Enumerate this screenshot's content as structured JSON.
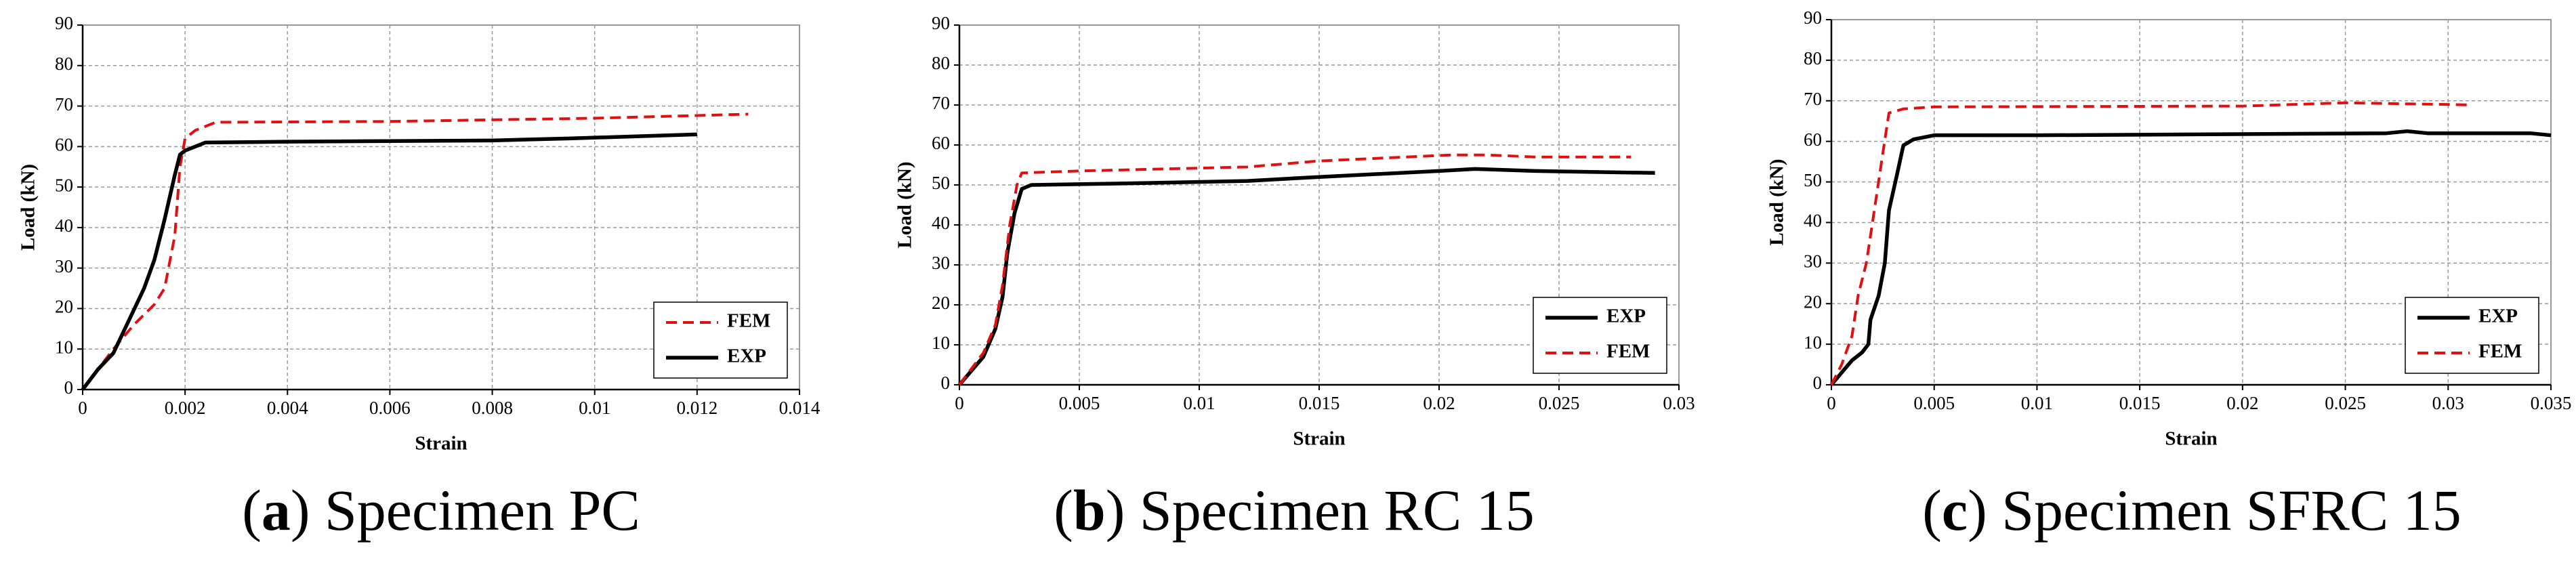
{
  "chart_data": [
    {
      "type": "line",
      "caption": {
        "prefix": "(",
        "label": "a",
        "text": ") Specimen PC"
      },
      "xlabel": "Strain",
      "ylabel": "Load (kN)",
      "xlim": [
        0,
        0.014
      ],
      "xticks": [
        0,
        0.002,
        0.004,
        0.006,
        0.008,
        0.01,
        0.012,
        0.014
      ],
      "ylim": [
        0,
        90
      ],
      "yticks": [
        0,
        10,
        20,
        30,
        40,
        50,
        60,
        70,
        80,
        90
      ],
      "grid": true,
      "legend": "lower right",
      "series": [
        {
          "name": "FEM",
          "color": "#e01010",
          "dash": true,
          "x": [
            0,
            0.0006,
            0.001,
            0.0014,
            0.0016,
            0.0018,
            0.0019,
            0.002,
            0.0022,
            0.0026,
            0.006,
            0.01,
            0.013
          ],
          "values": [
            0,
            10,
            16,
            21,
            25,
            38,
            55,
            62,
            64,
            66,
            66.2,
            67,
            68
          ]
        },
        {
          "name": "EXP",
          "color": "#000000",
          "dash": false,
          "x": [
            0,
            0.0003,
            0.0006,
            0.0009,
            0.0012,
            0.0014,
            0.0016,
            0.0018,
            0.0019,
            0.002,
            0.0022,
            0.0024,
            0.004,
            0.008,
            0.0095,
            0.012
          ],
          "values": [
            0,
            5,
            9,
            17,
            25,
            32,
            42,
            53,
            58,
            59,
            60,
            61,
            61.2,
            61.5,
            62,
            63
          ]
        }
      ]
    },
    {
      "type": "line",
      "caption": {
        "prefix": "(",
        "label": "b",
        "text": ") Specimen RC 15"
      },
      "xlabel": "Strain",
      "ylabel": "Load (kN)",
      "xlim": [
        0,
        0.03
      ],
      "xticks": [
        0,
        0.005,
        0.01,
        0.015,
        0.02,
        0.025,
        0.03
      ],
      "ylim": [
        0,
        90
      ],
      "yticks": [
        0,
        10,
        20,
        30,
        40,
        50,
        60,
        70,
        80,
        90
      ],
      "grid": true,
      "legend": "lower right",
      "series": [
        {
          "name": "EXP",
          "color": "#000000",
          "dash": false,
          "x": [
            0,
            0.001,
            0.0015,
            0.0018,
            0.002,
            0.0023,
            0.0026,
            0.003,
            0.008,
            0.012,
            0.015,
            0.02,
            0.0215,
            0.024,
            0.029
          ],
          "values": [
            0,
            7,
            14,
            22,
            33,
            43,
            49,
            50,
            50.5,
            51,
            52,
            53.5,
            54,
            53.5,
            53
          ]
        },
        {
          "name": "FEM",
          "color": "#e01010",
          "dash": true,
          "x": [
            0,
            0.001,
            0.0015,
            0.0018,
            0.0021,
            0.0024,
            0.0026,
            0.005,
            0.012,
            0.015,
            0.0205,
            0.022,
            0.024,
            0.028
          ],
          "values": [
            0,
            8,
            15,
            25,
            40,
            50,
            53,
            53.5,
            54.5,
            56,
            57.5,
            57.5,
            57,
            57
          ]
        }
      ]
    },
    {
      "type": "line",
      "caption": {
        "prefix": "(",
        "label": "c",
        "text": ") Specimen SFRC 15"
      },
      "xlabel": "Strain",
      "ylabel": "Load (kN)",
      "xlim": [
        0,
        0.035
      ],
      "xticks": [
        0,
        0.005,
        0.01,
        0.015,
        0.02,
        0.025,
        0.03,
        0.035
      ],
      "ylim": [
        0,
        90
      ],
      "yticks": [
        0,
        10,
        20,
        30,
        40,
        50,
        60,
        70,
        80,
        90
      ],
      "grid": true,
      "legend": "lower right",
      "series": [
        {
          "name": "EXP",
          "color": "#000000",
          "dash": false,
          "x": [
            0,
            0.0005,
            0.001,
            0.0015,
            0.0018,
            0.0019,
            0.0023,
            0.0026,
            0.0028,
            0.0032,
            0.0035,
            0.004,
            0.005,
            0.01,
            0.027,
            0.028,
            0.029,
            0.034,
            0.035
          ],
          "values": [
            0,
            3,
            6,
            8,
            10,
            16,
            22,
            30,
            43,
            52,
            59,
            60.5,
            61.5,
            61.5,
            62,
            62.5,
            62,
            62,
            61.5
          ]
        },
        {
          "name": "FEM",
          "color": "#e01010",
          "dash": true,
          "x": [
            0,
            0.0005,
            0.001,
            0.0013,
            0.0017,
            0.002,
            0.0025,
            0.0028,
            0.0035,
            0.005,
            0.02,
            0.025,
            0.031
          ],
          "values": [
            0,
            5,
            12,
            22,
            30,
            40,
            57,
            67,
            68,
            68.5,
            68.7,
            69.5,
            69
          ]
        }
      ]
    }
  ]
}
